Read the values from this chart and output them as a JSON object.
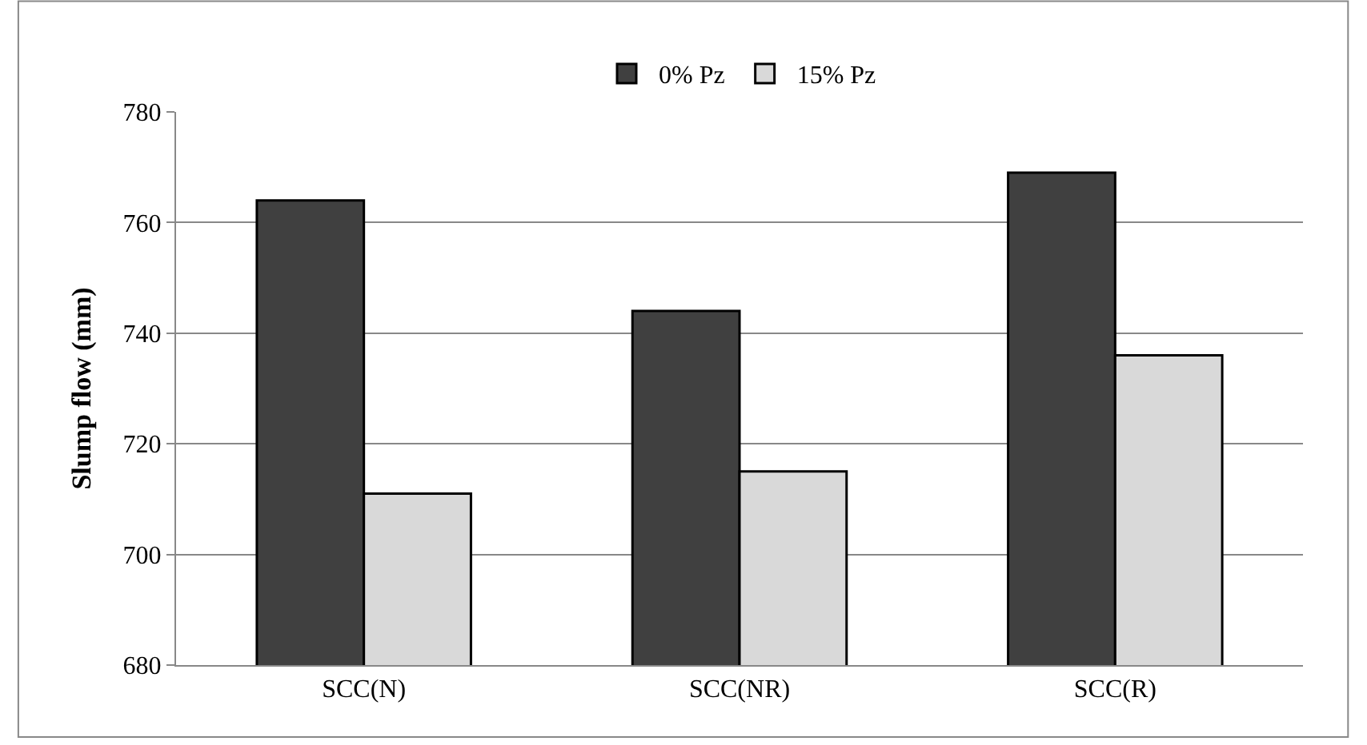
{
  "chart_data": {
    "type": "bar",
    "ylabel": "Slump flow (mm)",
    "categories": [
      "SCC(N)",
      "SCC(NR)",
      "SCC(R)"
    ],
    "series": [
      {
        "name": "0% Pz",
        "color": "#404040",
        "values": [
          764,
          744,
          769
        ]
      },
      {
        "name": "15% Pz",
        "color": "#d9d9d9",
        "values": [
          711,
          715,
          736
        ]
      }
    ],
    "ylim": [
      680,
      780
    ],
    "yticks": [
      680,
      700,
      720,
      740,
      760,
      780
    ],
    "grid": "y",
    "legend": "top"
  }
}
